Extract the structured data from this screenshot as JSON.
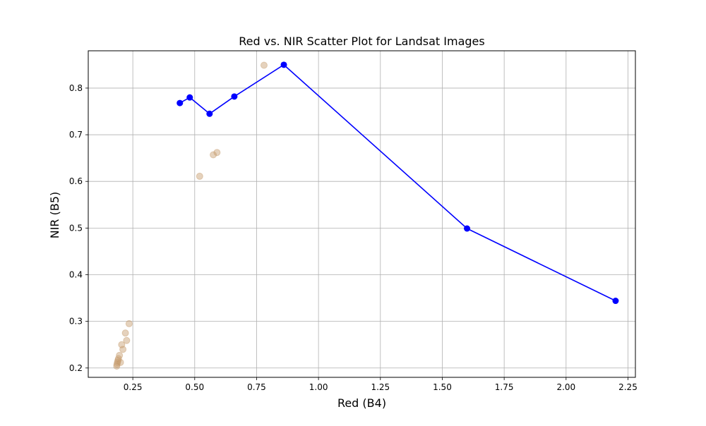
{
  "chart_data": {
    "type": "scatter",
    "title": "Red vs. NIR Scatter Plot for Landsat Images",
    "xlabel": "Red (B4)",
    "ylabel": "NIR (B5)",
    "xlim": [
      0.07,
      2.28
    ],
    "ylim": [
      0.18,
      0.88
    ],
    "grid": true,
    "x_ticks": [
      0.25,
      0.5,
      0.75,
      1.0,
      1.25,
      1.5,
      1.75,
      2.0,
      2.25
    ],
    "x_tick_labels": [
      "0.25",
      "0.50",
      "0.75",
      "1.00",
      "1.25",
      "1.50",
      "1.75",
      "2.00",
      "2.25"
    ],
    "y_ticks": [
      0.2,
      0.3,
      0.4,
      0.5,
      0.6,
      0.7,
      0.8
    ],
    "y_tick_labels": [
      "0.2",
      "0.3",
      "0.4",
      "0.5",
      "0.6",
      "0.7",
      "0.8"
    ],
    "series": [
      {
        "kind": "scatter",
        "color": "#c69c6d",
        "opacity": 0.45,
        "x": [
          0.185,
          0.186,
          0.188,
          0.19,
          0.192,
          0.196,
          0.2,
          0.205,
          0.21,
          0.22,
          0.225,
          0.235,
          0.52,
          0.575,
          0.59,
          0.78
        ],
        "y": [
          0.204,
          0.208,
          0.212,
          0.216,
          0.22,
          0.227,
          0.212,
          0.25,
          0.24,
          0.275,
          0.259,
          0.295,
          0.611,
          0.657,
          0.662,
          0.849
        ]
      },
      {
        "kind": "line",
        "color": "#0000ff",
        "marker": "circle",
        "x": [
          0.44,
          0.48,
          0.56,
          0.66,
          0.86,
          1.6,
          2.2
        ],
        "y": [
          0.768,
          0.78,
          0.745,
          0.782,
          0.85,
          0.499,
          0.344
        ]
      }
    ]
  }
}
